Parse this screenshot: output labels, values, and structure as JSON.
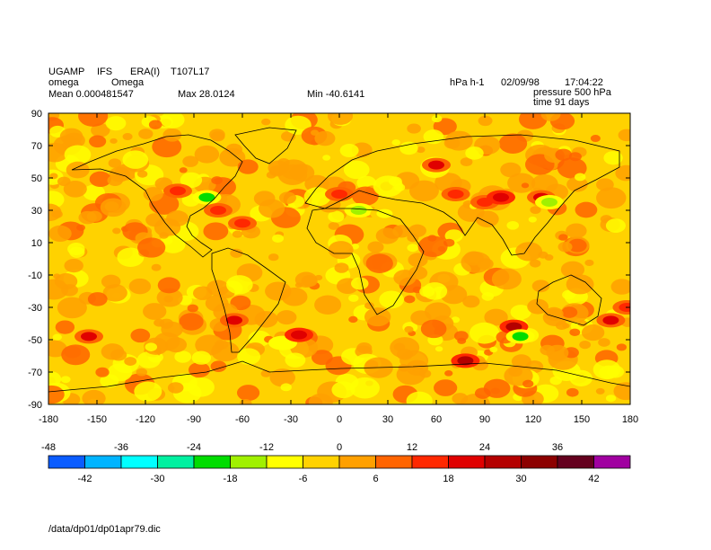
{
  "header": {
    "model": "UGAMP",
    "system": "IFS",
    "dataset": "ERA(I)",
    "resolution": "T107L17",
    "variable_short": "omega",
    "variable_long": "Omega",
    "units": "hPa h-1",
    "date": "02/09/98",
    "time": "17:04:22",
    "mean": "Mean 0.000481547",
    "max": "Max 28.0124",
    "min": "Min -40.6141",
    "level": "pressure 500 hPa",
    "elapsed": "time 91 days"
  },
  "footer": {
    "path": "/data/dp01/dp01apr79.dic"
  },
  "chart_data": {
    "type": "heatmap",
    "title": "Omega",
    "xlim": [
      -180,
      180
    ],
    "ylim": [
      -90,
      90
    ],
    "x_ticks": [
      "-180",
      "-150",
      "-120",
      "-90",
      "-60",
      "-30",
      "0",
      "30",
      "60",
      "90",
      "120",
      "150",
      "180"
    ],
    "y_ticks": [
      "90",
      "70",
      "50",
      "30",
      "10",
      "-10",
      "-30",
      "-50",
      "-70",
      "-90"
    ],
    "colorbar": {
      "levels_top": [
        "-48",
        "-36",
        "-24",
        "-12",
        "0",
        "12",
        "24",
        "36"
      ],
      "levels_bottom": [
        "-42",
        "-30",
        "-18",
        "-6",
        "6",
        "18",
        "30",
        "42"
      ],
      "bins": [
        -48,
        -42,
        -36,
        -30,
        -24,
        -18,
        -12,
        -6,
        0,
        6,
        12,
        18,
        24,
        30,
        36,
        42
      ],
      "colors": [
        "#0a5cff",
        "#00b4ff",
        "#00ffff",
        "#00f0a0",
        "#00dc00",
        "#a0f000",
        "#ffff00",
        "#ffd200",
        "#ffa000",
        "#ff6400",
        "#ff2800",
        "#e00000",
        "#b40000",
        "#8c0000",
        "#64001e",
        "#a000a0"
      ]
    },
    "background_level": "0 to 6",
    "features": [
      {
        "lon": -155,
        "lat": -48,
        "value": 20
      },
      {
        "lon": -100,
        "lat": 42,
        "value": 14
      },
      {
        "lon": -82,
        "lat": 38,
        "value": -20
      },
      {
        "lon": -75,
        "lat": 30,
        "value": 16
      },
      {
        "lon": -60,
        "lat": 22,
        "value": 14
      },
      {
        "lon": -65,
        "lat": -38,
        "value": 18
      },
      {
        "lon": -35,
        "lat": -52,
        "value": -12
      },
      {
        "lon": -25,
        "lat": -47,
        "value": 22
      },
      {
        "lon": 0,
        "lat": 40,
        "value": 16
      },
      {
        "lon": 12,
        "lat": 30,
        "value": -16
      },
      {
        "lon": 28,
        "lat": 28,
        "value": -10
      },
      {
        "lon": 60,
        "lat": 58,
        "value": 18
      },
      {
        "lon": 72,
        "lat": 40,
        "value": 16
      },
      {
        "lon": 90,
        "lat": 35,
        "value": 14
      },
      {
        "lon": 100,
        "lat": 38,
        "value": 22
      },
      {
        "lon": 125,
        "lat": 38,
        "value": 20
      },
      {
        "lon": 130,
        "lat": 35,
        "value": -14
      },
      {
        "lon": 78,
        "lat": -63,
        "value": 24
      },
      {
        "lon": 108,
        "lat": -42,
        "value": 24
      },
      {
        "lon": 112,
        "lat": -48,
        "value": -20
      },
      {
        "lon": 168,
        "lat": -38,
        "value": 18
      },
      {
        "lon": 178,
        "lat": -30,
        "value": 14
      }
    ]
  }
}
